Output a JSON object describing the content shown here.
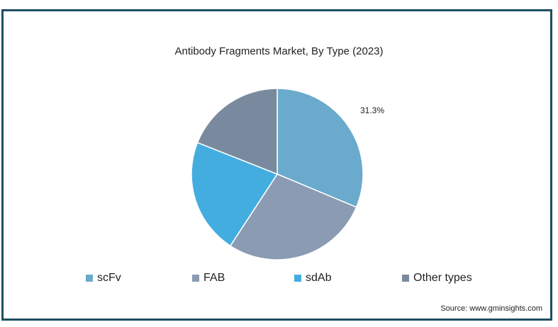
{
  "chart_data": {
    "type": "pie",
    "title": "Antibody Fragments Market, By Type (2023)",
    "slices": [
      {
        "name": "scFv",
        "value": 31.3,
        "color": "#6aaacc",
        "label": "31.3%"
      },
      {
        "name": "FAB",
        "value": 27.9,
        "color": "#8a9bb3",
        "label": ""
      },
      {
        "name": "sdAb",
        "value": 21.8,
        "color": "#44ade0",
        "label": ""
      },
      {
        "name": "Other types",
        "value": 19.0,
        "color": "#7a8a9e",
        "label": ""
      }
    ],
    "legend_position": "bottom"
  },
  "source": "Source: www.gminsights.com"
}
